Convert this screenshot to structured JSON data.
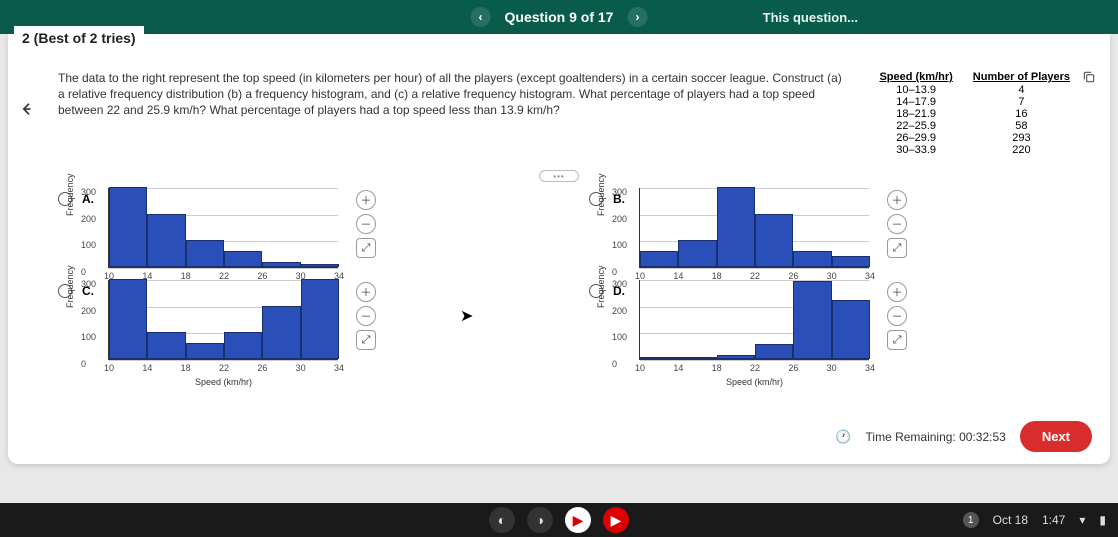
{
  "header": {
    "question_nav": "Question 9 of 17",
    "right_text": "This question..."
  },
  "meta": {
    "tries_label": "2 (Best of 2 tries)"
  },
  "question": {
    "text": "The data to the right represent the top speed (in kilometers per hour) of all the players (except goaltenders) in a certain soccer league. Construct (a) a relative frequency distribution (b) a frequency histogram, and (c) a relative frequency histogram. What percentage of players had a top speed between 22 and 25.9 km/h? What percentage of players had a top speed less than 13.9 km/h?"
  },
  "table": {
    "col1": "Speed (km/hr)",
    "col2": "Number of Players",
    "rows": [
      {
        "speed": "10–13.9",
        "count": "4"
      },
      {
        "speed": "14–17.9",
        "count": "7"
      },
      {
        "speed": "18–21.9",
        "count": "16"
      },
      {
        "speed": "22–25.9",
        "count": "58"
      },
      {
        "speed": "26–29.9",
        "count": "293"
      },
      {
        "speed": "30–33.9",
        "count": "220"
      }
    ]
  },
  "chart_common": {
    "ylabel": "Frequency",
    "xlabel": "Speed (km/hr)",
    "yticks": [
      "0",
      "100",
      "200",
      "300"
    ],
    "xticks": [
      "10",
      "14",
      "18",
      "22",
      "26",
      "30",
      "34"
    ],
    "ymax": 300,
    "bar_color": "#2b4fb8",
    "grid_color": "#cccccc"
  },
  "options": {
    "A": {
      "label": "A.",
      "bars": [
        300,
        200,
        100,
        60,
        20,
        10
      ]
    },
    "B": {
      "label": "B.",
      "bars": [
        60,
        100,
        300,
        200,
        60,
        40
      ]
    },
    "C": {
      "label": "C.",
      "bars": [
        300,
        100,
        60,
        100,
        200,
        300
      ]
    },
    "D": {
      "label": "D.",
      "bars": [
        4,
        7,
        16,
        58,
        293,
        220
      ]
    }
  },
  "footer": {
    "time_label": "Time Remaining: 00:32:53",
    "next_label": "Next"
  },
  "taskbar": {
    "date": "Oct 18",
    "time": "1:47"
  }
}
